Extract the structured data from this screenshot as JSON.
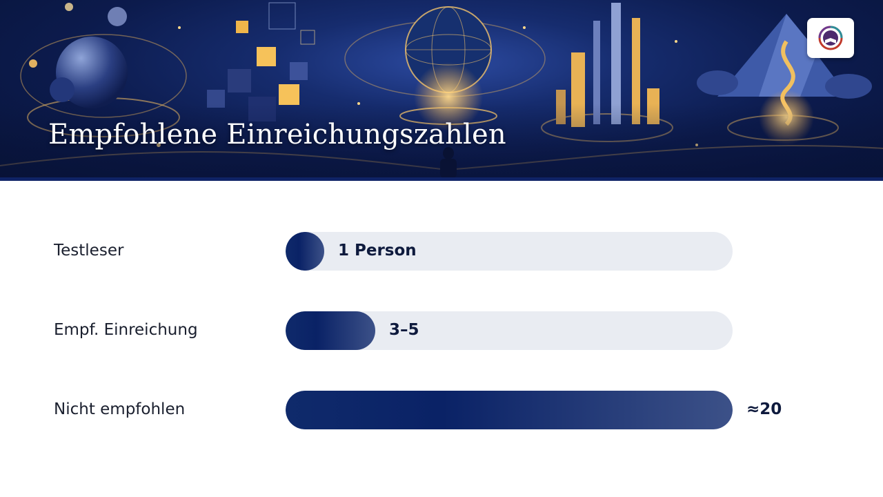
{
  "header": {
    "title": "Empfohlene Einreichungszahlen",
    "logo_icon": "book-brain-logo-icon"
  },
  "colors": {
    "bar_dark": "#0a2266",
    "bar_light": "#3c5188",
    "track": "#e9ecf2",
    "banner_bg": "#0c1b4d"
  },
  "chart_data": {
    "type": "bar",
    "orientation": "horizontal",
    "categories": [
      "Testleser",
      "Empf. Einreichung",
      "Nicht empfohlen"
    ],
    "values": [
      1,
      4,
      20
    ],
    "value_labels": [
      "1 Person",
      "3–5",
      "≈20"
    ],
    "xlim": [
      0,
      20
    ],
    "grid": false,
    "title": "Empfohlene Einreichungszahlen"
  }
}
